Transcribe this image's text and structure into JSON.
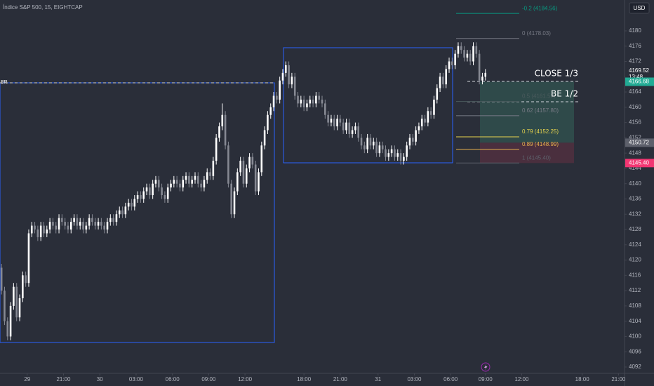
{
  "chart_data": {
    "type": "candlestick",
    "title": "Índice S&P 500, 15, EIGHTCAP",
    "currency": "USD",
    "up_color": "#ffffff",
    "down_color": "#868993",
    "grid": false,
    "ylim": [
      4090.34,
      4188.08
    ],
    "yticks": [
      4092,
      4096,
      4100,
      4104,
      4108,
      4112,
      4116,
      4120,
      4124,
      4128,
      4132,
      4136,
      4140,
      4144,
      4148,
      4152,
      4156,
      4160,
      4164,
      4168,
      4172,
      4176,
      4180
    ],
    "xlim": [
      -0.5,
      206
    ],
    "xticks": [
      {
        "value": 8.5,
        "label": "29"
      },
      {
        "value": 20.5,
        "label": "21:00"
      },
      {
        "value": 32.5,
        "label": "30"
      },
      {
        "value": 44.5,
        "label": "03:00"
      },
      {
        "value": 56.5,
        "label": "06:00"
      },
      {
        "value": 68.5,
        "label": "09:00"
      },
      {
        "value": 80.5,
        "label": "12:00"
      },
      {
        "value": 100,
        "label": "18:00"
      },
      {
        "value": 112,
        "label": "21:00"
      },
      {
        "value": 124.5,
        "label": "31"
      },
      {
        "value": 136.5,
        "label": "03:00"
      },
      {
        "value": 148.5,
        "label": "06:00"
      },
      {
        "value": 160,
        "label": "09:00"
      },
      {
        "value": 172,
        "label": "12:00"
      },
      {
        "value": 192,
        "label": "18:00"
      },
      {
        "value": 204,
        "label": "21:00"
      }
    ],
    "open": [
      4118,
      4112,
      4104,
      4100,
      4108,
      4113,
      4105,
      4110,
      4116,
      4114,
      4127,
      4129,
      4128,
      4126,
      4129,
      4127,
      4128,
      4130,
      4129,
      4128,
      4131,
      4130,
      4129,
      4128,
      4130,
      4131,
      4129,
      4130,
      4128,
      4129,
      4131,
      4130,
      4129,
      4130,
      4129,
      4128,
      4130,
      4131,
      4130,
      4132,
      4133,
      4132,
      4134,
      4135,
      4134,
      4136,
      4137,
      4136,
      4138,
      4139,
      4137,
      4140,
      4141,
      4139,
      4137,
      4136,
      4139,
      4140,
      4141,
      4140,
      4139,
      4141,
      4142,
      4140,
      4141,
      4142,
      4140,
      4139,
      4141,
      4143,
      4142,
      4146,
      4152,
      4155,
      4158,
      4150,
      4140,
      4132,
      4138,
      4143,
      4146,
      4140,
      4144,
      4147,
      4145,
      4138,
      4143,
      4150,
      4154,
      4158,
      4160,
      4163,
      4162,
      4167,
      4169,
      4171,
      4166,
      4168,
      4163,
      4161,
      4162,
      4160,
      4161,
      4162,
      4161,
      4163,
      4162,
      4161,
      4158,
      4156,
      4157,
      4155,
      4157,
      4156,
      4154,
      4156,
      4153,
      4154,
      4155,
      4152,
      4150,
      4149,
      4152,
      4150,
      4151,
      4148,
      4150,
      4149,
      4147,
      4148,
      4149,
      4147,
      4148,
      4146,
      4147,
      4150,
      4152,
      4151,
      4154,
      4155,
      4157,
      4156,
      4159,
      4158,
      4162,
      4165,
      4168,
      4166,
      4170,
      4172,
      4171,
      4174,
      4176,
      4175,
      4173,
      4174,
      4172,
      4176,
      4174,
      4167,
      4168
    ],
    "high": [
      4119,
      4113,
      4105,
      4109,
      4114,
      4114,
      4111,
      4117,
      4117,
      4128,
      4130,
      4130,
      4129,
      4130,
      4130,
      4129,
      4131,
      4131,
      4130,
      4132,
      4132,
      4131,
      4130,
      4131,
      4132,
      4132,
      4131,
      4131,
      4130,
      4132,
      4132,
      4131,
      4131,
      4131,
      4130,
      4131,
      4132,
      4132,
      4133,
      4134,
      4134,
      4135,
      4136,
      4136,
      4137,
      4138,
      4138,
      4139,
      4140,
      4140,
      4141,
      4142,
      4142,
      4140,
      4138,
      4140,
      4141,
      4142,
      4142,
      4141,
      4142,
      4143,
      4143,
      4142,
      4143,
      4143,
      4141,
      4142,
      4144,
      4144,
      4147,
      4153,
      4156,
      4161,
      4159,
      4151,
      4141,
      4139,
      4144,
      4147,
      4147,
      4145,
      4148,
      4148,
      4146,
      4144,
      4151,
      4155,
      4159,
      4161,
      4164,
      4164,
      4168,
      4170,
      4172,
      4172,
      4169,
      4169,
      4164,
      4163,
      4163,
      4162,
      4163,
      4163,
      4164,
      4164,
      4163,
      4162,
      4159,
      4158,
      4158,
      4158,
      4158,
      4157,
      4157,
      4157,
      4155,
      4156,
      4156,
      4153,
      4151,
      4153,
      4153,
      4152,
      4152,
      4151,
      4151,
      4150,
      4149,
      4150,
      4150,
      4149,
      4149,
      4148,
      4151,
      4153,
      4153,
      4155,
      4156,
      4158,
      4158,
      4160,
      4160,
      4163,
      4166,
      4169,
      4169,
      4171,
      4173,
      4173,
      4175,
      4177,
      4177,
      4176,
      4175,
      4175,
      4177,
      4177,
      4175,
      4169,
      4170
    ],
    "low": [
      4111,
      4103,
      4099,
      4099,
      4107,
      4104,
      4104,
      4109,
      4113,
      4113,
      4126,
      4127,
      4125,
      4125,
      4126,
      4126,
      4127,
      4128,
      4127,
      4127,
      4129,
      4128,
      4127,
      4127,
      4129,
      4128,
      4128,
      4127,
      4127,
      4128,
      4129,
      4128,
      4128,
      4128,
      4127,
      4127,
      4129,
      4129,
      4129,
      4131,
      4131,
      4131,
      4133,
      4133,
      4133,
      4135,
      4135,
      4135,
      4137,
      4136,
      4136,
      4139,
      4138,
      4136,
      4135,
      4135,
      4138,
      4139,
      4139,
      4138,
      4138,
      4140,
      4139,
      4139,
      4140,
      4139,
      4138,
      4138,
      4140,
      4141,
      4141,
      4145,
      4151,
      4154,
      4149,
      4139,
      4131,
      4131,
      4137,
      4142,
      4139,
      4139,
      4143,
      4144,
      4137,
      4137,
      4142,
      4149,
      4153,
      4157,
      4159,
      4161,
      4161,
      4166,
      4168,
      4165,
      4165,
      4162,
      4160,
      4160,
      4159,
      4159,
      4160,
      4160,
      4160,
      4161,
      4160,
      4157,
      4155,
      4155,
      4154,
      4154,
      4155,
      4153,
      4153,
      4152,
      4152,
      4153,
      4151,
      4149,
      4148,
      4148,
      4149,
      4149,
      4147,
      4147,
      4148,
      4146,
      4146,
      4147,
      4146,
      4146,
      4145,
      4145,
      4146,
      4149,
      4150,
      4150,
      4153,
      4154,
      4155,
      4155,
      4157,
      4157,
      4161,
      4164,
      4165,
      4165,
      4169,
      4170,
      4170,
      4173,
      4174,
      4172,
      4172,
      4171,
      4171,
      4173,
      4166,
      4166,
      4167
    ],
    "close": [
      4112,
      4104,
      4100,
      4108,
      4113,
      4105,
      4110,
      4116,
      4114,
      4127,
      4129,
      4128,
      4126,
      4129,
      4127,
      4128,
      4130,
      4129,
      4128,
      4131,
      4130,
      4129,
      4128,
      4130,
      4131,
      4129,
      4130,
      4128,
      4129,
      4131,
      4130,
      4129,
      4130,
      4129,
      4128,
      4130,
      4131,
      4130,
      4132,
      4133,
      4132,
      4134,
      4135,
      4134,
      4136,
      4137,
      4136,
      4138,
      4139,
      4137,
      4140,
      4141,
      4139,
      4137,
      4136,
      4139,
      4140,
      4141,
      4140,
      4139,
      4141,
      4142,
      4140,
      4141,
      4142,
      4140,
      4139,
      4141,
      4143,
      4142,
      4146,
      4152,
      4155,
      4158,
      4150,
      4140,
      4132,
      4138,
      4143,
      4146,
      4140,
      4144,
      4147,
      4145,
      4138,
      4143,
      4150,
      4154,
      4158,
      4160,
      4163,
      4162,
      4167,
      4169,
      4171,
      4166,
      4168,
      4163,
      4161,
      4162,
      4160,
      4161,
      4162,
      4161,
      4163,
      4162,
      4161,
      4158,
      4156,
      4157,
      4155,
      4157,
      4156,
      4154,
      4156,
      4153,
      4154,
      4155,
      4152,
      4150,
      4149,
      4152,
      4150,
      4151,
      4148,
      4150,
      4149,
      4147,
      4148,
      4149,
      4147,
      4148,
      4146,
      4147,
      4150,
      4152,
      4151,
      4154,
      4155,
      4157,
      4156,
      4159,
      4158,
      4162,
      4165,
      4168,
      4166,
      4170,
      4172,
      4171,
      4174,
      4176,
      4175,
      4173,
      4174,
      4172,
      4176,
      4174,
      4167,
      4168,
      4169
    ],
    "fib_levels": [
      {
        "label": "-0.2 (4184.56)",
        "value": 4184.56,
        "color": "#089981"
      },
      {
        "label": "0 (4178.03)",
        "value": 4178.03,
        "color": "#787b86"
      },
      {
        "label": "0.5 (4161.52)",
        "value": 4161.52,
        "color": "#4a5a5c"
      },
      {
        "label": "0.62 (4157.80)",
        "value": 4157.8,
        "color": "#787b86"
      },
      {
        "label": "0.79 (4152.25)",
        "value": 4152.25,
        "color": "#e8d44d"
      },
      {
        "label": "0.89 (4148.99)",
        "value": 4148.99,
        "color": "#e8b14d"
      },
      {
        "label": "1 (4145.40)",
        "value": 4145.4,
        "color": "#5d606b"
      }
    ],
    "position": {
      "target": 4166.68,
      "entry": 4150.72,
      "stop": 4145.4,
      "profit_color": "#2f4a4a",
      "loss_color": "#4a2f3e"
    },
    "price_tags": [
      {
        "value": 4169.52,
        "label": "4169.52",
        "color": "#2a2e39"
      },
      {
        "value": 4166.68,
        "label": "4166.68",
        "color": "#22ab94"
      },
      {
        "value": 4150.72,
        "label": "4150.72",
        "color": "#5d606b"
      },
      {
        "value": 4145.4,
        "label": "4145.40",
        "color": "#f23672"
      }
    ],
    "countdown": "13:48",
    "annotations": {
      "close": "CLOSE 1/3",
      "breakeven": "BE 1/2",
      "left_level": "BR"
    }
  }
}
